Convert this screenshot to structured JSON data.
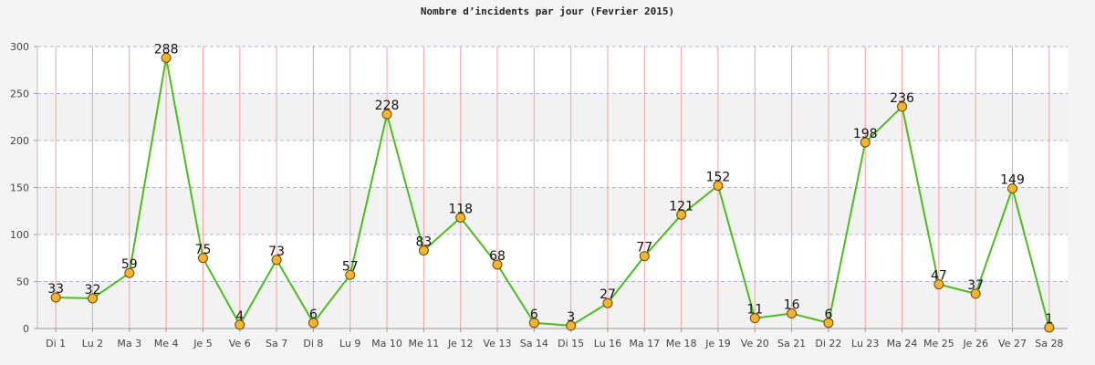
{
  "chart_data": {
    "type": "line",
    "title": "Nombre d’incidents par jour (Fevrier 2015)",
    "xlabel": "",
    "ylabel": "",
    "categories": [
      "Di 1",
      "Lu 2",
      "Ma 3",
      "Me 4",
      "Je 5",
      "Ve 6",
      "Sa 7",
      "Di 8",
      "Lu 9",
      "Ma 10",
      "Me 11",
      "Je 12",
      "Ve 13",
      "Sa 14",
      "Di 15",
      "Lu 16",
      "Ma 17",
      "Me 18",
      "Je 19",
      "Ve 20",
      "Sa 21",
      "Di 22",
      "Lu 23",
      "Ma 24",
      "Me 25",
      "Je 26",
      "Ve 27",
      "Sa 28"
    ],
    "series": [
      {
        "values": [
          33,
          32,
          59,
          288,
          75,
          4,
          73,
          6,
          57,
          228,
          83,
          118,
          68,
          6,
          3,
          27,
          77,
          121,
          152,
          11,
          16,
          6,
          198,
          236,
          47,
          37,
          149,
          1
        ]
      }
    ],
    "ylim": [
      0,
      300
    ],
    "yticks": [
      0,
      50,
      100,
      150,
      200,
      250,
      300
    ],
    "grid": true,
    "colors": {
      "line": "#4cbc1e",
      "marker": "#f2b431",
      "marker_stroke": "#6b4a00",
      "vgrid": "#f2a0a0",
      "hgrid": "#b0b0e0",
      "band_light": "#ffffff",
      "band_dark": "#f2f2f2"
    }
  }
}
